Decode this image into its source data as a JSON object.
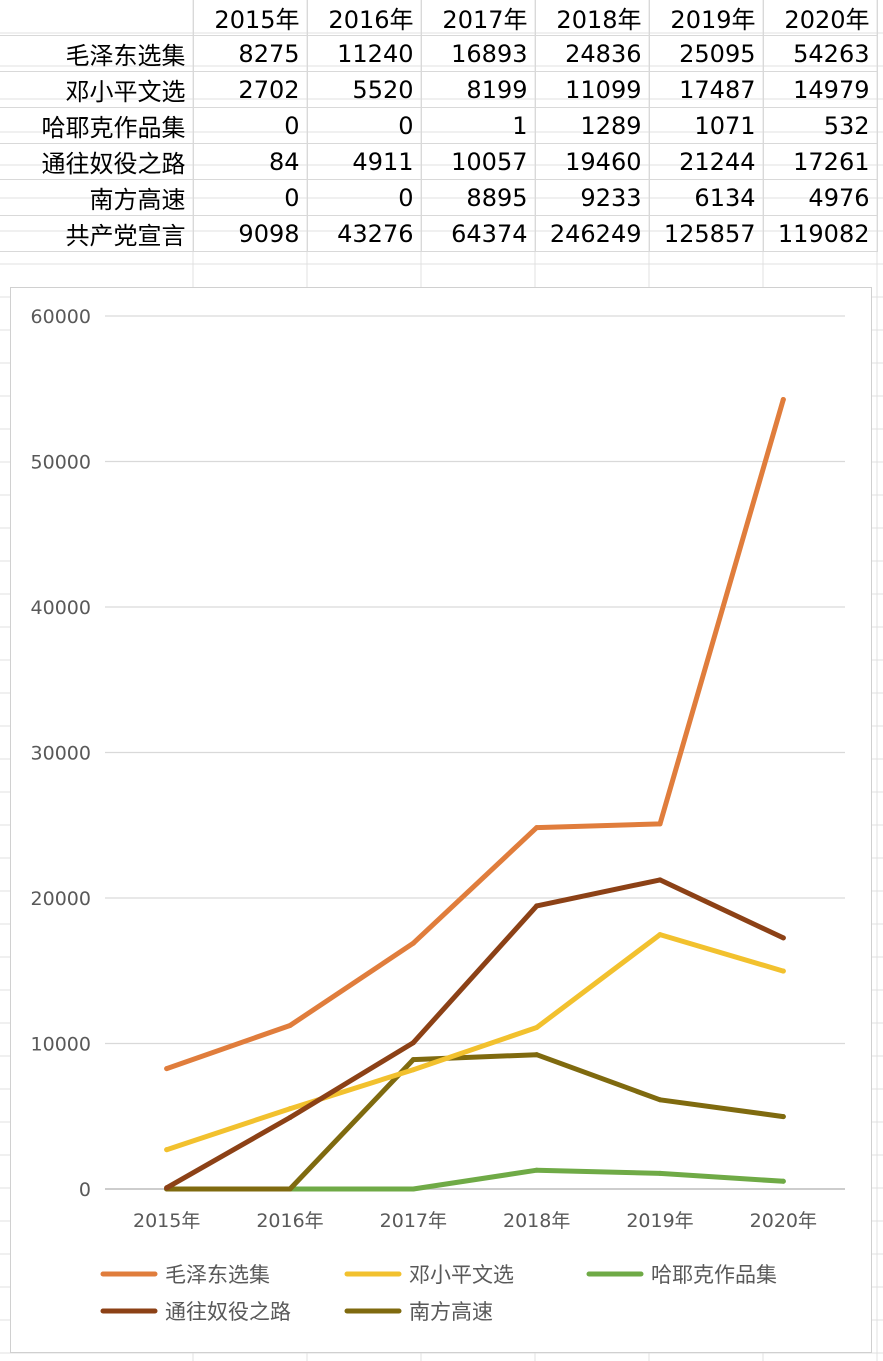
{
  "table": {
    "columns": [
      "2015年",
      "2016年",
      "2017年",
      "2018年",
      "2019年",
      "2020年"
    ],
    "rows": [
      {
        "label": "毛泽东选集",
        "values": [
          8275,
          11240,
          16893,
          24836,
          25095,
          54263
        ]
      },
      {
        "label": "邓小平文选",
        "values": [
          2702,
          5520,
          8199,
          11099,
          17487,
          14979
        ]
      },
      {
        "label": "哈耶克作品集",
        "values": [
          0,
          0,
          1,
          1289,
          1071,
          532
        ]
      },
      {
        "label": "通往奴役之路",
        "values": [
          84,
          4911,
          10057,
          19460,
          21244,
          17261
        ]
      },
      {
        "label": "南方高速",
        "values": [
          0,
          0,
          8895,
          9233,
          6134,
          4976
        ]
      },
      {
        "label": "共产党宣言",
        "values": [
          9098,
          43276,
          64374,
          246249,
          125857,
          119082
        ]
      }
    ]
  },
  "chart_data": {
    "type": "line",
    "categories": [
      "2015年",
      "2016年",
      "2017年",
      "2018年",
      "2019年",
      "2020年"
    ],
    "ylim": [
      0,
      60000
    ],
    "yticks": [
      0,
      10000,
      20000,
      30000,
      40000,
      50000,
      60000
    ],
    "grid": true,
    "legend_position": "bottom",
    "series": [
      {
        "name": "毛泽东选集",
        "color": "#e07d3c",
        "values": [
          8275,
          11240,
          16893,
          24836,
          25095,
          54263
        ]
      },
      {
        "name": "邓小平文选",
        "color": "#f2c12e",
        "values": [
          2702,
          5520,
          8199,
          11099,
          17487,
          14979
        ]
      },
      {
        "name": "哈耶克作品集",
        "color": "#6faa46",
        "values": [
          0,
          0,
          1,
          1289,
          1071,
          532
        ]
      },
      {
        "name": "通往奴役之路",
        "color": "#8c4116",
        "values": [
          84,
          4911,
          10057,
          19460,
          21244,
          17261
        ]
      },
      {
        "name": "南方高速",
        "color": "#7f6a0f",
        "values": [
          0,
          0,
          8895,
          9233,
          6134,
          4976
        ]
      }
    ]
  }
}
